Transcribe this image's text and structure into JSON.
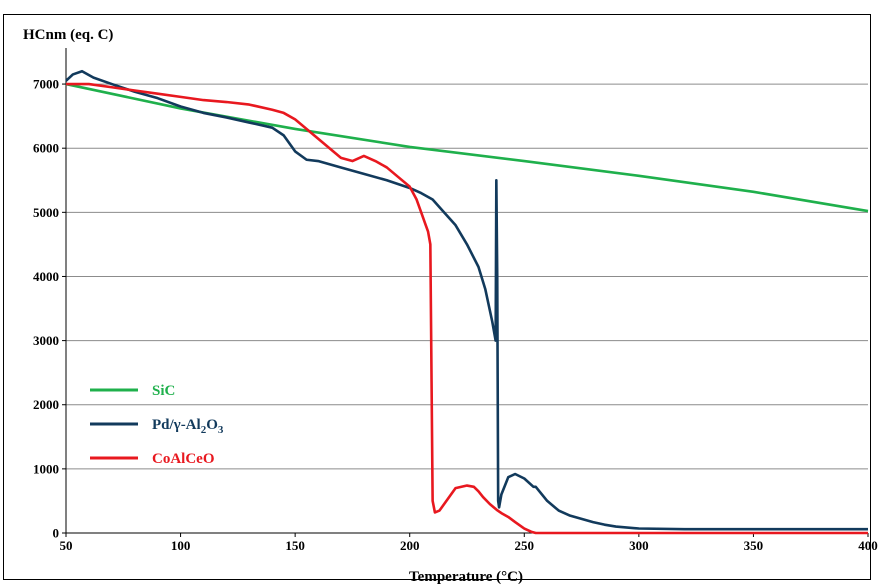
{
  "chart_data": {
    "type": "line",
    "title": "",
    "ylabel": "HCnm (eq. C)",
    "xlabel": "Temperature (°C)",
    "xlim": [
      50,
      400
    ],
    "ylim": [
      0,
      7500
    ],
    "xticks": [
      50,
      100,
      150,
      200,
      250,
      300,
      350,
      400
    ],
    "yticks": [
      0,
      1000,
      2000,
      3000,
      4000,
      5000,
      6000,
      7000
    ],
    "grid": "horizontal",
    "legend_position": "bottom-left",
    "series": [
      {
        "name": "SiC",
        "name_parts": [
          {
            "t": "SiC"
          }
        ],
        "color": "#1fb04c",
        "x": [
          50,
          100,
          150,
          200,
          250,
          300,
          350,
          400
        ],
        "y": [
          7000,
          6620,
          6300,
          6020,
          5800,
          5570,
          5320,
          5020
        ]
      },
      {
        "name": "Pd/γ-Al2O3",
        "name_parts": [
          {
            "t": "Pd/γ-Al"
          },
          {
            "t": "2",
            "sub": true
          },
          {
            "t": "O"
          },
          {
            "t": "3",
            "sub": true
          }
        ],
        "color": "#123a5c",
        "x": [
          50,
          53,
          57,
          62,
          70,
          80,
          90,
          100,
          110,
          120,
          130,
          140,
          145,
          150,
          155,
          160,
          170,
          180,
          190,
          200,
          205,
          210,
          215,
          220,
          225,
          230,
          233,
          236,
          237.5,
          237.8,
          238.2,
          238.6,
          239,
          240,
          243,
          246,
          250,
          254,
          255,
          260,
          265,
          270,
          275,
          280,
          285,
          290,
          300,
          320,
          350,
          400
        ],
        "y": [
          7050,
          7150,
          7200,
          7100,
          7000,
          6880,
          6780,
          6650,
          6550,
          6480,
          6400,
          6320,
          6200,
          5950,
          5820,
          5800,
          5700,
          5600,
          5500,
          5380,
          5300,
          5200,
          5000,
          4800,
          4500,
          4150,
          3800,
          3300,
          3000,
          5500,
          4000,
          500,
          400,
          600,
          870,
          920,
          850,
          720,
          720,
          500,
          350,
          270,
          220,
          170,
          130,
          100,
          70,
          60,
          60,
          60
        ]
      },
      {
        "name": "CoAlCeO",
        "name_parts": [
          {
            "t": "CoAlCeO"
          }
        ],
        "color": "#e8181f",
        "x": [
          50,
          60,
          70,
          80,
          90,
          100,
          110,
          120,
          130,
          140,
          145,
          150,
          155,
          160,
          165,
          170,
          175,
          180,
          185,
          190,
          195,
          200,
          203,
          205,
          207,
          208,
          209,
          209.5,
          210,
          211,
          213,
          215,
          220,
          225,
          228,
          230,
          232,
          235,
          238,
          240,
          243,
          246,
          250,
          253,
          255,
          260,
          300,
          400
        ],
        "y": [
          7000,
          7000,
          6950,
          6900,
          6850,
          6800,
          6750,
          6720,
          6680,
          6600,
          6550,
          6450,
          6300,
          6150,
          6000,
          5850,
          5800,
          5880,
          5800,
          5700,
          5550,
          5400,
          5200,
          5000,
          4800,
          4700,
          4500,
          2500,
          500,
          320,
          350,
          450,
          700,
          740,
          720,
          650,
          560,
          450,
          360,
          310,
          250,
          170,
          70,
          20,
          0,
          0,
          0,
          0
        ]
      }
    ]
  }
}
